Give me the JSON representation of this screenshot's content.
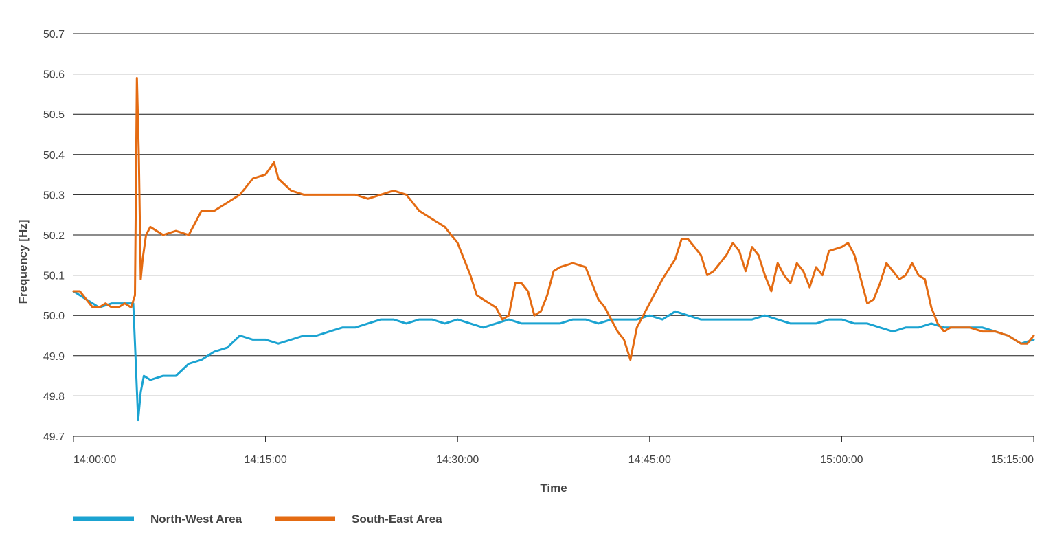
{
  "chart_data": {
    "type": "line",
    "title": "",
    "xlabel": "Time",
    "ylabel": "Frequency [Hz]",
    "ylim": [
      49.7,
      50.7
    ],
    "yticks": [
      "49.7",
      "49.8",
      "49.9",
      "50.0",
      "50.1",
      "50.2",
      "50.3",
      "50.4",
      "50.5",
      "50.6",
      "50.7"
    ],
    "xlim": [
      "14:00:00",
      "15:15:00"
    ],
    "xticks": [
      "14:00:00",
      "14:15:00",
      "14:30:00",
      "14:45:00",
      "15:00:00",
      "15:15:00"
    ],
    "grid": true,
    "legend_position": "bottom-left",
    "series": [
      {
        "name": "North-West Area",
        "color": "#1ba3d1",
        "points": [
          [
            "14:00:00",
            50.06
          ],
          [
            "14:01:00",
            50.04
          ],
          [
            "14:02:00",
            50.02
          ],
          [
            "14:03:00",
            50.03
          ],
          [
            "14:04:00",
            50.03
          ],
          [
            "14:04:40",
            50.03
          ],
          [
            "14:04:48",
            49.93
          ],
          [
            "14:05:03",
            49.74
          ],
          [
            "14:05:15",
            49.81
          ],
          [
            "14:05:30",
            49.85
          ],
          [
            "14:06:00",
            49.84
          ],
          [
            "14:07:00",
            49.85
          ],
          [
            "14:08:00",
            49.85
          ],
          [
            "14:09:00",
            49.88
          ],
          [
            "14:10:00",
            49.89
          ],
          [
            "14:11:00",
            49.91
          ],
          [
            "14:12:00",
            49.92
          ],
          [
            "14:13:00",
            49.95
          ],
          [
            "14:14:00",
            49.94
          ],
          [
            "14:15:00",
            49.94
          ],
          [
            "14:16:00",
            49.93
          ],
          [
            "14:17:00",
            49.94
          ],
          [
            "14:18:00",
            49.95
          ],
          [
            "14:19:00",
            49.95
          ],
          [
            "14:20:00",
            49.96
          ],
          [
            "14:21:00",
            49.97
          ],
          [
            "14:22:00",
            49.97
          ],
          [
            "14:23:00",
            49.98
          ],
          [
            "14:24:00",
            49.99
          ],
          [
            "14:25:00",
            49.99
          ],
          [
            "14:26:00",
            49.98
          ],
          [
            "14:27:00",
            49.99
          ],
          [
            "14:28:00",
            49.99
          ],
          [
            "14:29:00",
            49.98
          ],
          [
            "14:30:00",
            49.99
          ],
          [
            "14:31:00",
            49.98
          ],
          [
            "14:32:00",
            49.97
          ],
          [
            "14:33:00",
            49.98
          ],
          [
            "14:34:00",
            49.99
          ],
          [
            "14:35:00",
            49.98
          ],
          [
            "14:36:00",
            49.98
          ],
          [
            "14:37:00",
            49.98
          ],
          [
            "14:38:00",
            49.98
          ],
          [
            "14:39:00",
            49.99
          ],
          [
            "14:40:00",
            49.99
          ],
          [
            "14:41:00",
            49.98
          ],
          [
            "14:42:00",
            49.99
          ],
          [
            "14:43:00",
            49.99
          ],
          [
            "14:44:00",
            49.99
          ],
          [
            "14:45:00",
            50.0
          ],
          [
            "14:46:00",
            49.99
          ],
          [
            "14:47:00",
            50.01
          ],
          [
            "14:48:00",
            50.0
          ],
          [
            "14:49:00",
            49.99
          ],
          [
            "14:50:00",
            49.99
          ],
          [
            "14:51:00",
            49.99
          ],
          [
            "14:52:00",
            49.99
          ],
          [
            "14:53:00",
            49.99
          ],
          [
            "14:54:00",
            50.0
          ],
          [
            "14:55:00",
            49.99
          ],
          [
            "14:56:00",
            49.98
          ],
          [
            "14:57:00",
            49.98
          ],
          [
            "14:58:00",
            49.98
          ],
          [
            "14:59:00",
            49.99
          ],
          [
            "15:00:00",
            49.99
          ],
          [
            "15:01:00",
            49.98
          ],
          [
            "15:02:00",
            49.98
          ],
          [
            "15:03:00",
            49.97
          ],
          [
            "15:04:00",
            49.96
          ],
          [
            "15:05:00",
            49.97
          ],
          [
            "15:06:00",
            49.97
          ],
          [
            "15:07:00",
            49.98
          ],
          [
            "15:08:00",
            49.97
          ],
          [
            "15:09:00",
            49.97
          ],
          [
            "15:10:00",
            49.97
          ],
          [
            "15:11:00",
            49.97
          ],
          [
            "15:12:00",
            49.96
          ],
          [
            "15:13:00",
            49.95
          ],
          [
            "15:14:00",
            49.93
          ],
          [
            "15:15:00",
            49.94
          ]
        ]
      },
      {
        "name": "South-East Area",
        "color": "#e46b12",
        "points": [
          [
            "14:00:00",
            50.06
          ],
          [
            "14:00:30",
            50.06
          ],
          [
            "14:01:00",
            50.04
          ],
          [
            "14:01:30",
            50.02
          ],
          [
            "14:02:00",
            50.02
          ],
          [
            "14:02:30",
            50.03
          ],
          [
            "14:03:00",
            50.02
          ],
          [
            "14:03:30",
            50.02
          ],
          [
            "14:04:00",
            50.03
          ],
          [
            "14:04:30",
            50.02
          ],
          [
            "14:04:48",
            50.05
          ],
          [
            "14:04:57",
            50.59
          ],
          [
            "14:05:06",
            50.4
          ],
          [
            "14:05:15",
            50.09
          ],
          [
            "14:05:24",
            50.14
          ],
          [
            "14:05:40",
            50.2
          ],
          [
            "14:06:00",
            50.22
          ],
          [
            "14:07:00",
            50.2
          ],
          [
            "14:08:00",
            50.21
          ],
          [
            "14:09:00",
            50.2
          ],
          [
            "14:10:00",
            50.26
          ],
          [
            "14:11:00",
            50.26
          ],
          [
            "14:12:00",
            50.28
          ],
          [
            "14:13:00",
            50.3
          ],
          [
            "14:14:00",
            50.34
          ],
          [
            "14:15:00",
            50.35
          ],
          [
            "14:15:40",
            50.38
          ],
          [
            "14:16:00",
            50.34
          ],
          [
            "14:17:00",
            50.31
          ],
          [
            "14:18:00",
            50.3
          ],
          [
            "14:19:00",
            50.3
          ],
          [
            "14:20:00",
            50.3
          ],
          [
            "14:21:00",
            50.3
          ],
          [
            "14:22:00",
            50.3
          ],
          [
            "14:23:00",
            50.29
          ],
          [
            "14:24:00",
            50.3
          ],
          [
            "14:25:00",
            50.31
          ],
          [
            "14:26:00",
            50.3
          ],
          [
            "14:27:00",
            50.26
          ],
          [
            "14:28:00",
            50.24
          ],
          [
            "14:29:00",
            50.22
          ],
          [
            "14:30:00",
            50.18
          ],
          [
            "14:31:00",
            50.1
          ],
          [
            "14:31:30",
            50.05
          ],
          [
            "14:32:00",
            50.04
          ],
          [
            "14:32:30",
            50.03
          ],
          [
            "14:33:00",
            50.02
          ],
          [
            "14:33:30",
            49.99
          ],
          [
            "14:34:00",
            50.0
          ],
          [
            "14:34:30",
            50.08
          ],
          [
            "14:35:00",
            50.08
          ],
          [
            "14:35:30",
            50.06
          ],
          [
            "14:36:00",
            50.0
          ],
          [
            "14:36:30",
            50.01
          ],
          [
            "14:37:00",
            50.05
          ],
          [
            "14:37:30",
            50.11
          ],
          [
            "14:38:00",
            50.12
          ],
          [
            "14:39:00",
            50.13
          ],
          [
            "14:40:00",
            50.12
          ],
          [
            "14:40:30",
            50.08
          ],
          [
            "14:41:00",
            50.04
          ],
          [
            "14:41:30",
            50.02
          ],
          [
            "14:42:00",
            49.99
          ],
          [
            "14:42:30",
            49.96
          ],
          [
            "14:43:00",
            49.94
          ],
          [
            "14:43:30",
            49.89
          ],
          [
            "14:44:00",
            49.97
          ],
          [
            "14:44:30",
            50.0
          ],
          [
            "14:45:00",
            50.03
          ],
          [
            "14:46:00",
            50.09
          ],
          [
            "14:47:00",
            50.14
          ],
          [
            "14:47:30",
            50.19
          ],
          [
            "14:48:00",
            50.19
          ],
          [
            "14:49:00",
            50.15
          ],
          [
            "14:49:30",
            50.1
          ],
          [
            "14:50:00",
            50.11
          ],
          [
            "14:51:00",
            50.15
          ],
          [
            "14:51:30",
            50.18
          ],
          [
            "14:52:00",
            50.16
          ],
          [
            "14:52:30",
            50.11
          ],
          [
            "14:53:00",
            50.17
          ],
          [
            "14:53:30",
            50.15
          ],
          [
            "14:54:00",
            50.1
          ],
          [
            "14:54:30",
            50.06
          ],
          [
            "14:55:00",
            50.13
          ],
          [
            "14:55:30",
            50.1
          ],
          [
            "14:56:00",
            50.08
          ],
          [
            "14:56:30",
            50.13
          ],
          [
            "14:57:00",
            50.11
          ],
          [
            "14:57:30",
            50.07
          ],
          [
            "14:58:00",
            50.12
          ],
          [
            "14:58:30",
            50.1
          ],
          [
            "14:59:00",
            50.16
          ],
          [
            "15:00:00",
            50.17
          ],
          [
            "15:00:30",
            50.18
          ],
          [
            "15:01:00",
            50.15
          ],
          [
            "15:01:30",
            50.09
          ],
          [
            "15:02:00",
            50.03
          ],
          [
            "15:02:30",
            50.04
          ],
          [
            "15:03:00",
            50.08
          ],
          [
            "15:03:30",
            50.13
          ],
          [
            "15:04:00",
            50.11
          ],
          [
            "15:04:30",
            50.09
          ],
          [
            "15:05:00",
            50.1
          ],
          [
            "15:05:30",
            50.13
          ],
          [
            "15:06:00",
            50.1
          ],
          [
            "15:06:30",
            50.09
          ],
          [
            "15:07:00",
            50.02
          ],
          [
            "15:07:30",
            49.98
          ],
          [
            "15:08:00",
            49.96
          ],
          [
            "15:08:30",
            49.97
          ],
          [
            "15:09:00",
            49.97
          ],
          [
            "15:10:00",
            49.97
          ],
          [
            "15:11:00",
            49.96
          ],
          [
            "15:12:00",
            49.96
          ],
          [
            "15:13:00",
            49.95
          ],
          [
            "15:14:00",
            49.93
          ],
          [
            "15:14:30",
            49.93
          ],
          [
            "15:15:00",
            49.95
          ]
        ]
      }
    ]
  }
}
